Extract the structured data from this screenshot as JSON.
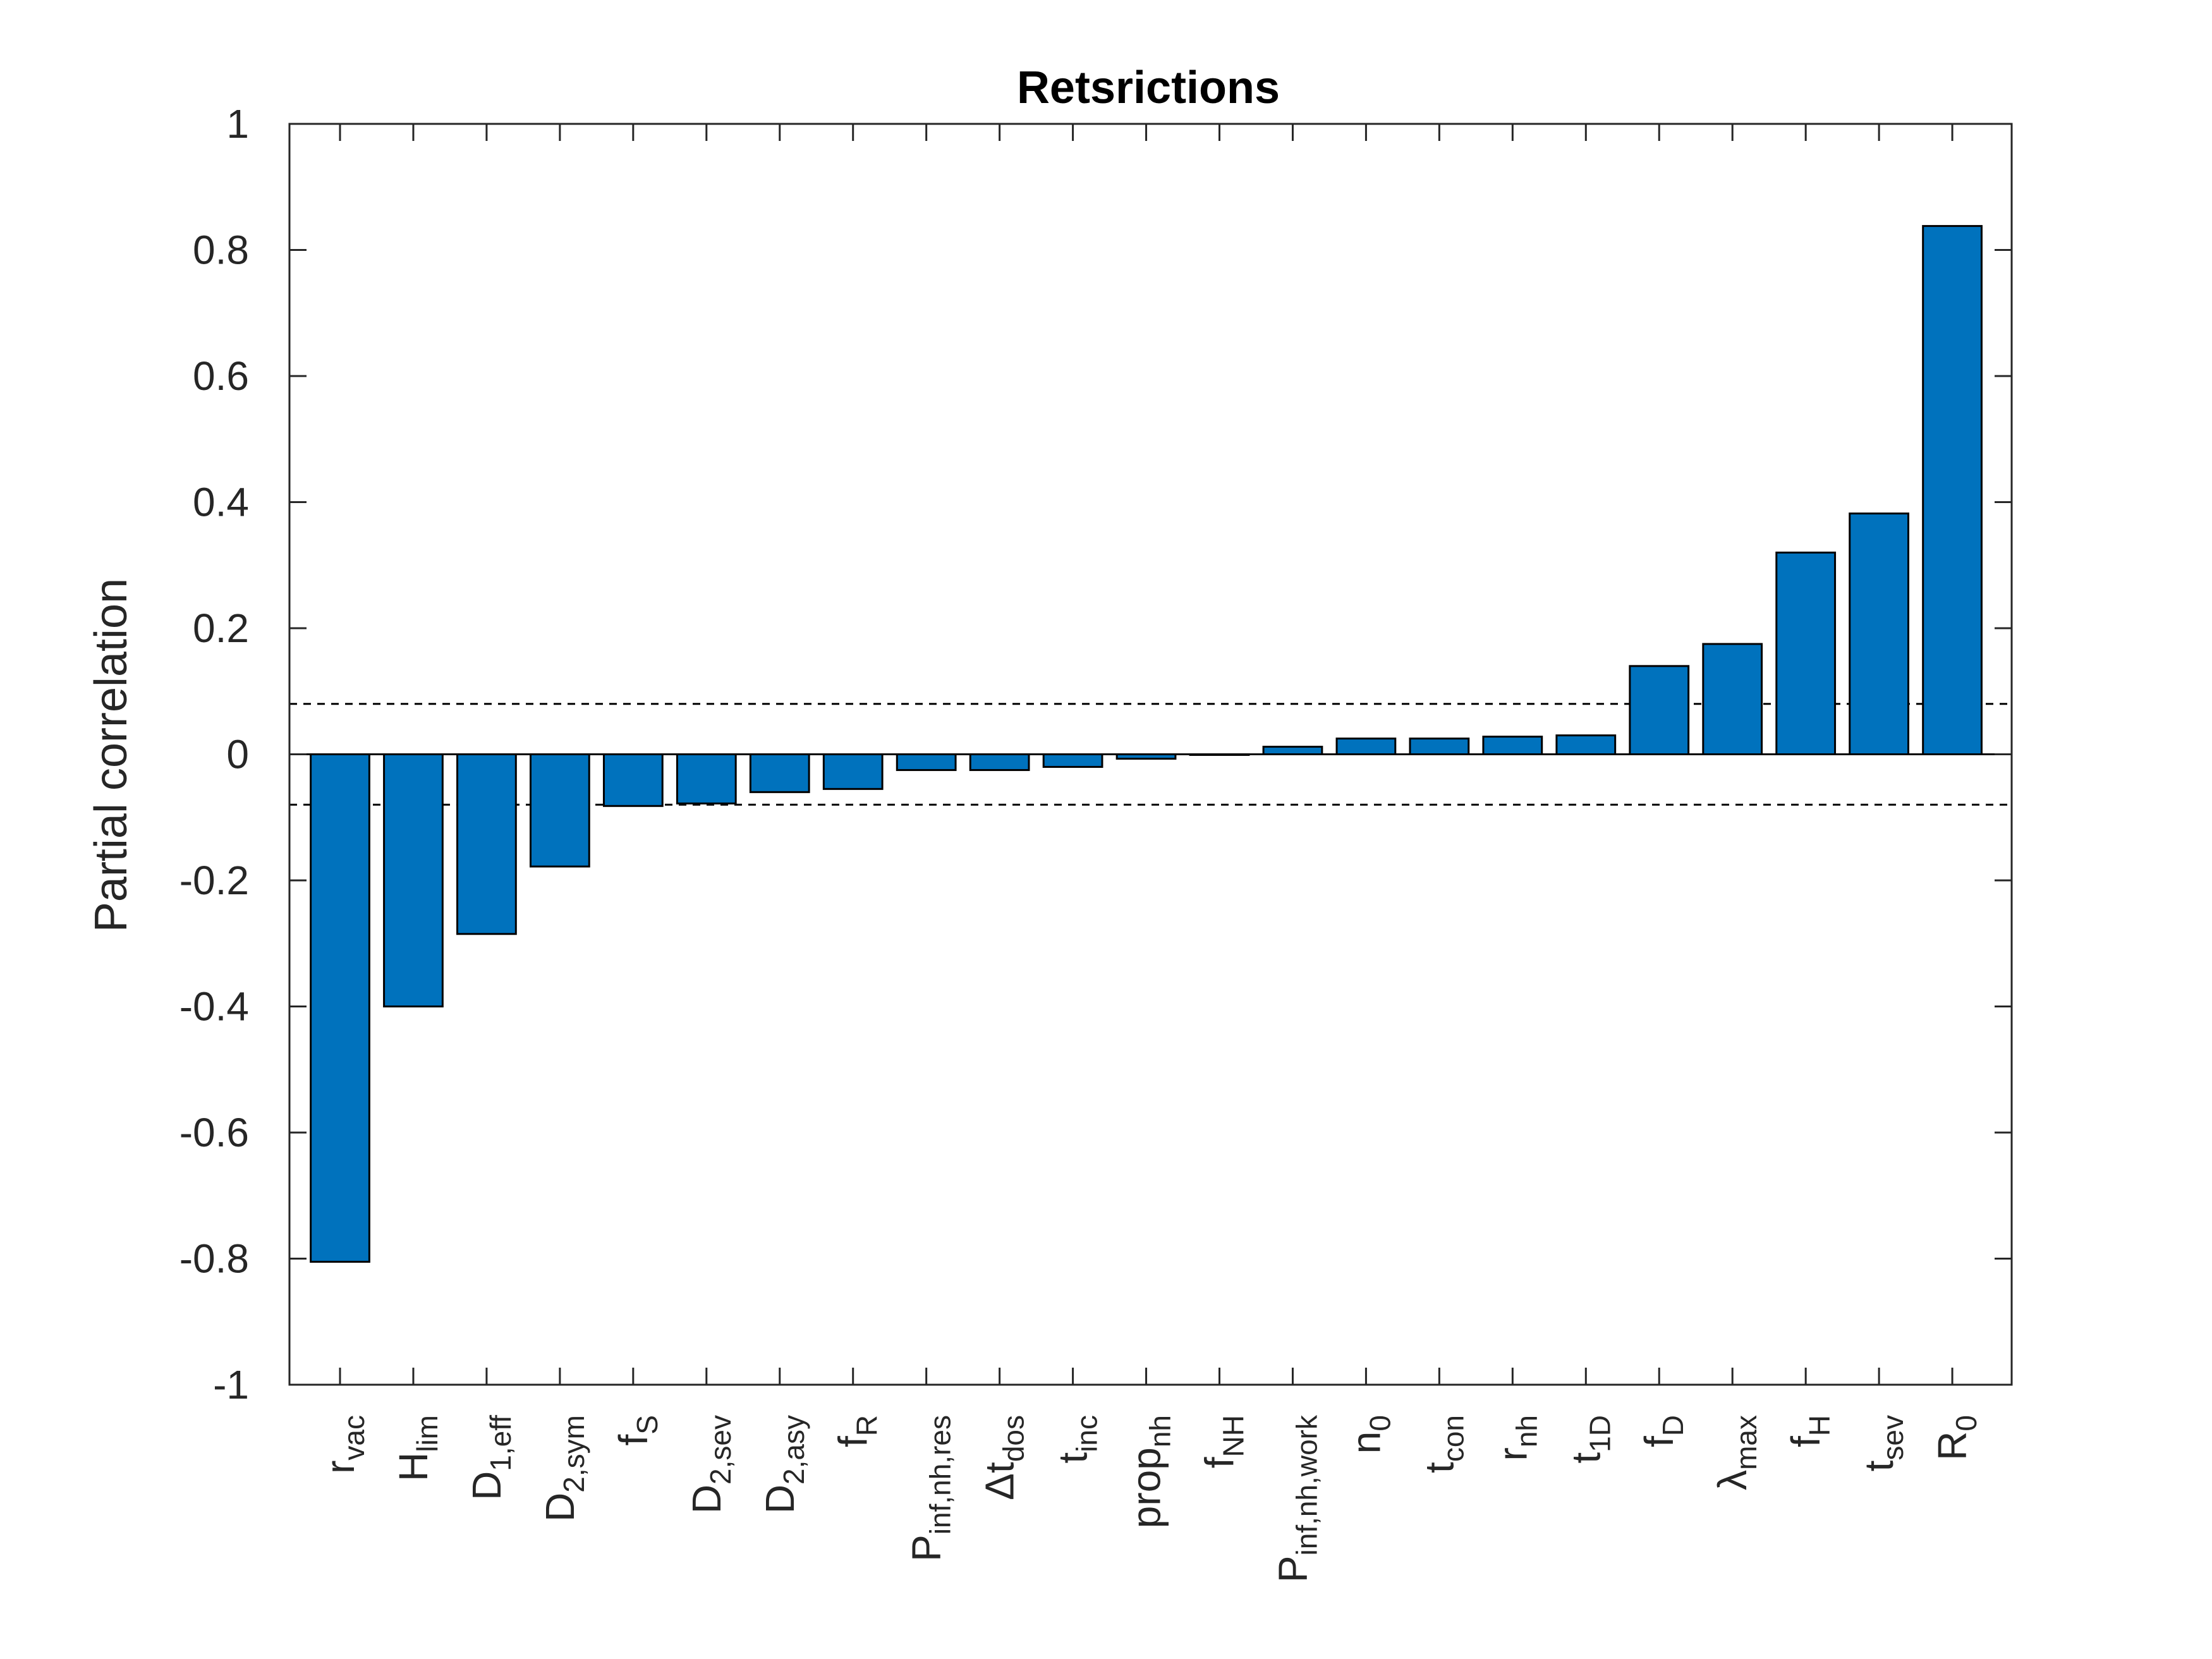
{
  "chart_data": {
    "type": "bar",
    "title": "Retsrictions",
    "xlabel": "",
    "ylabel": "Partial correlation",
    "ylim": [
      -1,
      1
    ],
    "yticks": [
      1,
      0.8,
      0.6,
      0.4,
      0.2,
      0,
      -0.2,
      -0.4,
      -0.6,
      -0.8,
      -1
    ],
    "ytick_labels": [
      "1",
      "0.8",
      "0.6",
      "0.4",
      "0.2",
      "0",
      "-0.2",
      "-0.4",
      "-0.6",
      "-0.8",
      "-1"
    ],
    "significance_threshold": 0.08,
    "categories": [
      {
        "base": "r",
        "sub": "vac"
      },
      {
        "base": "H",
        "sub": "lim"
      },
      {
        "base": "D",
        "sub": "1,eff"
      },
      {
        "base": "D",
        "sub": "2,sym"
      },
      {
        "base": "f",
        "sub": "S"
      },
      {
        "base": "D",
        "sub": "2,sev"
      },
      {
        "base": "D",
        "sub": "2,asy"
      },
      {
        "base": "f",
        "sub": "R"
      },
      {
        "base": "P",
        "sub": "inf,nh,res"
      },
      {
        "base": "Δt",
        "sub": "dos"
      },
      {
        "base": "t",
        "sub": "inc"
      },
      {
        "base": "prop",
        "sub": "nh"
      },
      {
        "base": "f",
        "sub": "NH"
      },
      {
        "base": "P",
        "sub": "inf,nh,work"
      },
      {
        "base": "n",
        "sub": "0"
      },
      {
        "base": "t",
        "sub": "con"
      },
      {
        "base": "r",
        "sub": "nh"
      },
      {
        "base": "t",
        "sub": "1D"
      },
      {
        "base": "f",
        "sub": "D"
      },
      {
        "base": "λ",
        "sub": "max"
      },
      {
        "base": "f",
        "sub": "H"
      },
      {
        "base": "t",
        "sub": "sev"
      },
      {
        "base": "R",
        "sub": "0"
      }
    ],
    "values": [
      -0.805,
      -0.4,
      -0.285,
      -0.178,
      -0.082,
      -0.078,
      -0.06,
      -0.055,
      -0.025,
      -0.025,
      -0.02,
      -0.007,
      0.0,
      0.012,
      0.025,
      0.025,
      0.028,
      0.03,
      0.14,
      0.175,
      0.32,
      0.382,
      0.838
    ],
    "bar_color": "#0072BD",
    "grid": false,
    "legend": "none"
  }
}
